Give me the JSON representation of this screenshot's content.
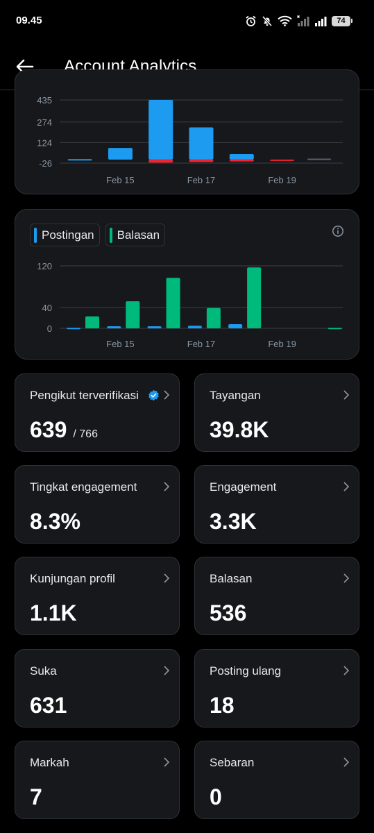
{
  "status_bar": {
    "time": "09.45",
    "battery": "74"
  },
  "header": {
    "title": "Account Analytics"
  },
  "colors": {
    "blue": "#1d9bf0",
    "green": "#00ba7c",
    "red": "#f4212e"
  },
  "chart_top": {
    "type": "bar",
    "y_ticks": [
      "435",
      "274",
      "124",
      "-26"
    ],
    "x_labels": [
      "Feb 15",
      "Feb 17",
      "Feb 19"
    ]
  },
  "chart_bottom": {
    "legend": [
      {
        "label": "Postingan",
        "color": "#1d9bf0"
      },
      {
        "label": "Balasan",
        "color": "#00ba7c"
      }
    ],
    "y_ticks": [
      "120",
      "40",
      "0"
    ],
    "x_labels": [
      "Feb 15",
      "Feb 17",
      "Feb 19"
    ]
  },
  "chart_data": [
    {
      "type": "bar",
      "x": [
        "Feb 14",
        "Feb 15",
        "Feb 16",
        "Feb 17",
        "Feb 18",
        "Feb 19",
        "Feb 20"
      ],
      "series": [
        {
          "values": [
            3,
            85,
            435,
            235,
            40,
            0,
            0
          ],
          "color": "#1d9bf0"
        },
        {
          "values": [
            0,
            0,
            -22,
            -18,
            -14,
            -3,
            0
          ],
          "color": "#f4212e"
        }
      ],
      "y_ticks": [
        435,
        274,
        124,
        -26
      ],
      "ylim": [
        -26,
        435
      ],
      "x_tick_labels": [
        "Feb 15",
        "Feb 17",
        "Feb 19"
      ]
    },
    {
      "type": "bar",
      "x": [
        "Feb 14",
        "Feb 15",
        "Feb 16",
        "Feb 17",
        "Feb 18",
        "Feb 19",
        "Feb 20"
      ],
      "series": [
        {
          "name": "Postingan",
          "values": [
            1,
            4,
            4,
            5,
            8,
            0,
            0
          ],
          "color": "#1d9bf0"
        },
        {
          "name": "Balasan",
          "values": [
            23,
            52,
            97,
            39,
            117,
            0,
            1
          ],
          "color": "#00ba7c"
        }
      ],
      "y_ticks": [
        120,
        40,
        0
      ],
      "ylim": [
        0,
        120
      ],
      "x_tick_labels": [
        "Feb 15",
        "Feb 17",
        "Feb 19"
      ]
    }
  ],
  "metrics": [
    {
      "label": "Pengikut terverifikasi",
      "value": "639",
      "sub": "/ 766",
      "verified": true
    },
    {
      "label": "Tayangan",
      "value": "39.8K"
    },
    {
      "label": "Tingkat engagement",
      "value": "8.3%"
    },
    {
      "label": "Engagement",
      "value": "3.3K"
    },
    {
      "label": "Kunjungan profil",
      "value": "1.1K"
    },
    {
      "label": "Balasan",
      "value": "536"
    },
    {
      "label": "Suka",
      "value": "631"
    },
    {
      "label": "Posting ulang",
      "value": "18"
    },
    {
      "label": "Markah",
      "value": "7"
    },
    {
      "label": "Sebaran",
      "value": "0"
    }
  ]
}
